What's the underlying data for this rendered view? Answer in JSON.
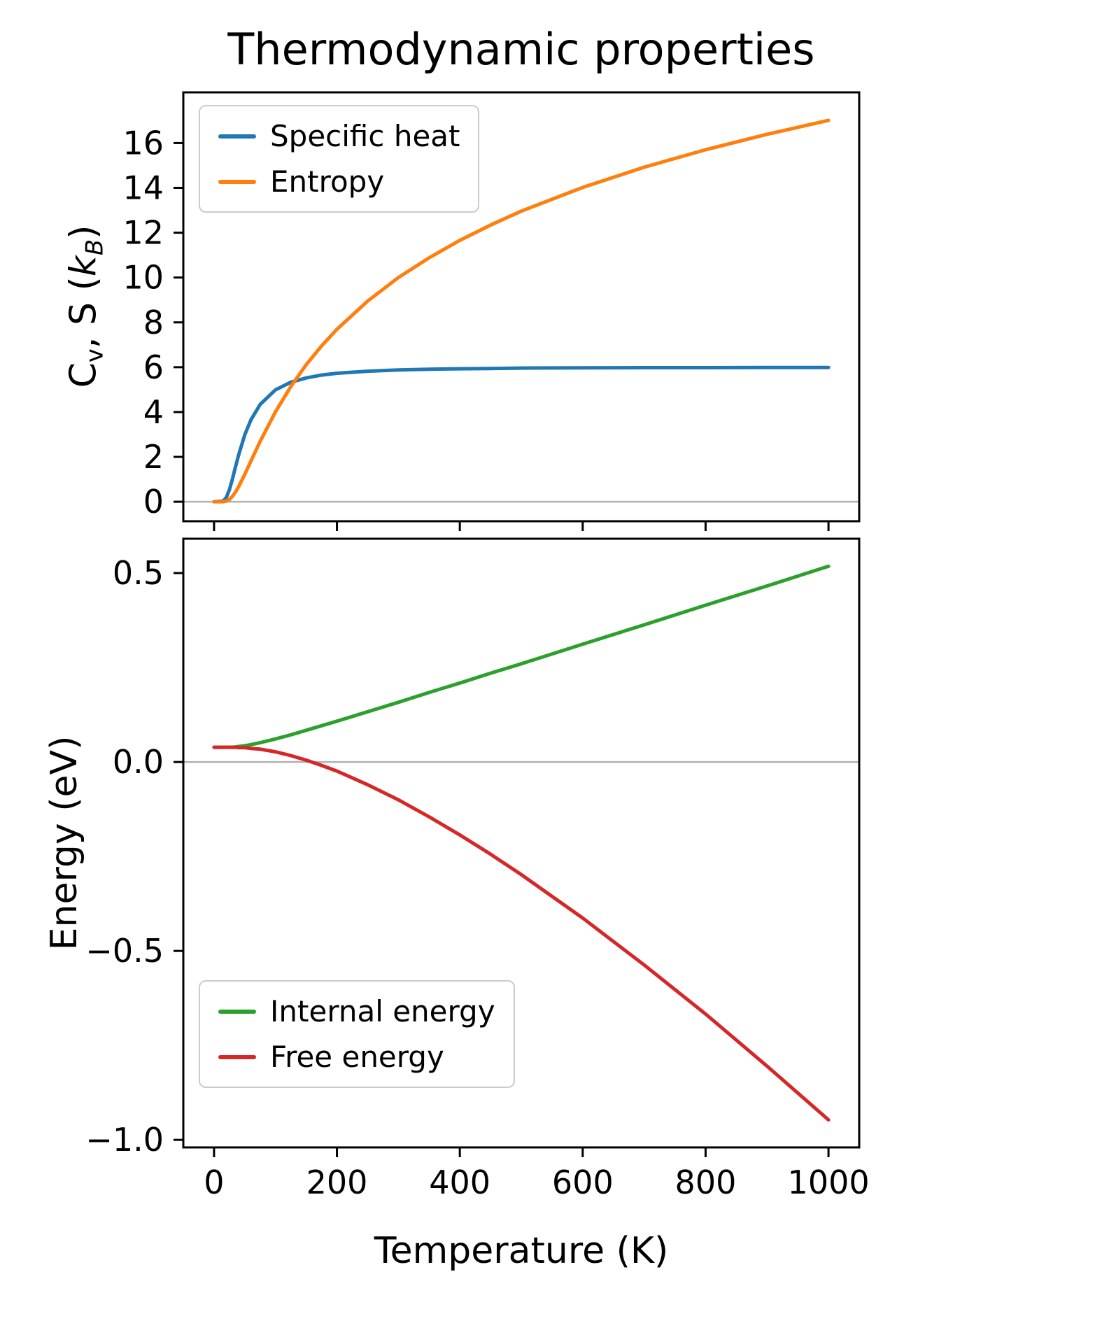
{
  "chart_data": [
    {
      "type": "line",
      "name": "upper-panel",
      "title": "Thermodynamic properties",
      "xlabel": "",
      "ylabel": "Cv, S (kB)",
      "ylabel_rich": [
        {
          "t": "C"
        },
        {
          "t": "v",
          "sub": true
        },
        {
          "t": ", S ("
        },
        {
          "t": "k",
          "italic": true
        },
        {
          "t": "B",
          "sub": true,
          "italic": true
        },
        {
          "t": ")"
        }
      ],
      "x": [
        0,
        15,
        20,
        25,
        30,
        35,
        40,
        50,
        60,
        75,
        100,
        125,
        150,
        175,
        200,
        250,
        300,
        350,
        400,
        450,
        500,
        600,
        700,
        800,
        900,
        1000
      ],
      "series": [
        {
          "key": "specific-heat",
          "name": "Specific heat",
          "color": "#1f77b4",
          "values": [
            0,
            0.03,
            0.19,
            0.54,
            1.02,
            1.56,
            2.08,
            2.98,
            3.65,
            4.34,
            4.99,
            5.33,
            5.52,
            5.65,
            5.73,
            5.82,
            5.88,
            5.91,
            5.93,
            5.94,
            5.96,
            5.97,
            5.98,
            5.98,
            5.99,
            5.99
          ]
        },
        {
          "key": "entropy",
          "name": "Entropy",
          "color": "#ff7f0e",
          "values": [
            0,
            0.0,
            0.03,
            0.1,
            0.24,
            0.43,
            0.67,
            1.22,
            1.81,
            2.69,
            4.01,
            5.14,
            6.11,
            6.95,
            7.69,
            8.95,
            10.0,
            10.88,
            11.66,
            12.34,
            12.96,
            14.02,
            14.92,
            15.7,
            16.39,
            17.01
          ]
        }
      ],
      "xlim": [
        -50,
        1050
      ],
      "ylim": [
        -0.87,
        18.26
      ],
      "xticks": {
        "values": [
          0,
          200,
          400,
          600,
          800,
          1000
        ],
        "labels": [
          "0",
          "200",
          "400",
          "600",
          "800",
          "1000"
        ],
        "show_labels": false
      },
      "yticks": {
        "values": [
          0,
          2,
          4,
          6,
          8,
          10,
          12,
          14,
          16
        ],
        "labels": [
          "0",
          "2",
          "4",
          "6",
          "8",
          "10",
          "12",
          "14",
          "16"
        ]
      },
      "zero_line": true,
      "grid": false,
      "legend": {
        "position": "upper-left",
        "entries": [
          "Specific heat",
          "Entropy"
        ]
      }
    },
    {
      "type": "line",
      "name": "lower-panel",
      "title": "",
      "xlabel": "Temperature (K)",
      "ylabel": "Energy (eV)",
      "x": [
        0,
        15,
        20,
        25,
        30,
        35,
        40,
        50,
        60,
        75,
        100,
        125,
        150,
        175,
        200,
        250,
        300,
        350,
        400,
        450,
        500,
        600,
        700,
        800,
        900,
        1000
      ],
      "series": [
        {
          "key": "internal-energy",
          "name": "Internal energy",
          "color": "#2ca02c",
          "values": [
            0.039,
            0.039,
            0.039,
            0.039,
            0.039,
            0.04,
            0.041,
            0.043,
            0.046,
            0.051,
            0.061,
            0.072,
            0.084,
            0.096,
            0.108,
            0.133,
            0.158,
            0.184,
            0.209,
            0.235,
            0.26,
            0.312,
            0.363,
            0.415,
            0.466,
            0.518
          ]
        },
        {
          "key": "free-energy",
          "name": "Free energy",
          "color": "#d62728",
          "values": [
            0.039,
            0.039,
            0.039,
            0.039,
            0.039,
            0.039,
            0.038,
            0.038,
            0.036,
            0.034,
            0.027,
            0.017,
            0.005,
            -0.009,
            -0.024,
            -0.06,
            -0.1,
            -0.145,
            -0.193,
            -0.244,
            -0.298,
            -0.413,
            -0.537,
            -0.667,
            -0.805,
            -0.947
          ]
        }
      ],
      "xlim": [
        -50,
        1050
      ],
      "ylim": [
        -1.02,
        0.591
      ],
      "xticks": {
        "values": [
          0,
          200,
          400,
          600,
          800,
          1000
        ],
        "labels": [
          "0",
          "200",
          "400",
          "600",
          "800",
          "1000"
        ],
        "show_labels": true
      },
      "yticks": {
        "values": [
          0.5,
          0.0,
          -0.5,
          -1.0
        ],
        "labels": [
          "0.5",
          "0.0",
          "−0.5",
          "−1.0"
        ]
      },
      "zero_line": true,
      "grid": false,
      "legend": {
        "position": "lower-left",
        "entries": [
          "Internal energy",
          "Free energy"
        ]
      }
    }
  ],
  "style_colors": {
    "spine": "#000000",
    "zero_line": "#b0b0b0",
    "legend_border": "#cccccc",
    "background": "#ffffff"
  }
}
